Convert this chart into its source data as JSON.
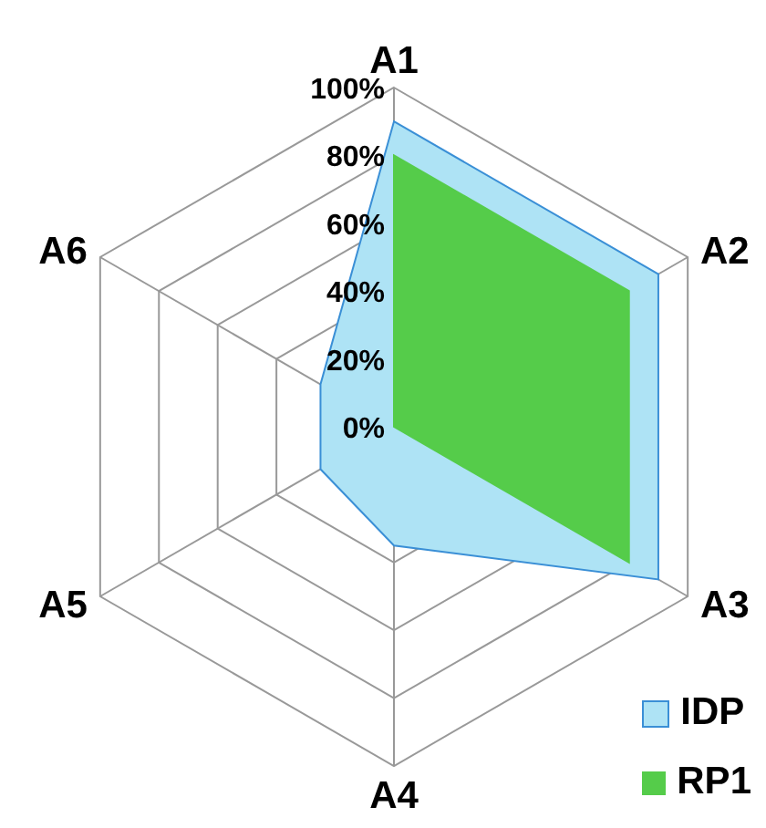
{
  "chart_data": {
    "type": "radar",
    "categories": [
      "A1",
      "A2",
      "A3",
      "A4",
      "A5",
      "A6"
    ],
    "series": [
      {
        "name": "IDP",
        "color": "#aee3f5",
        "values": [
          90,
          90,
          90,
          35,
          25,
          25
        ]
      },
      {
        "name": "RP1",
        "color": "#55cc4a",
        "values": [
          80,
          80,
          80,
          0,
          0,
          0
        ]
      }
    ],
    "ylim": [
      0,
      100
    ],
    "yticks": [
      {
        "value": 0,
        "label": "0%"
      },
      {
        "value": 20,
        "label": "20%"
      },
      {
        "value": 40,
        "label": "40%"
      },
      {
        "value": 60,
        "label": "60%"
      },
      {
        "value": 80,
        "label": "80%"
      },
      {
        "value": 100,
        "label": "100%"
      }
    ],
    "grid": true,
    "legend": "bottom right"
  }
}
